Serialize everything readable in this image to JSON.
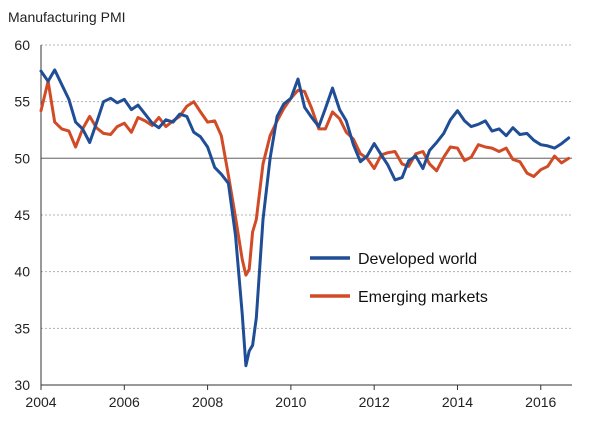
{
  "chart_data": {
    "type": "line",
    "title": "Manufacturing  PMI",
    "xlabel": "",
    "ylabel": "",
    "xlim": [
      2004,
      2016.75
    ],
    "ylim": [
      30,
      60
    ],
    "x_ticks": [
      2004,
      2006,
      2008,
      2010,
      2012,
      2014,
      2016
    ],
    "y_ticks": [
      30,
      35,
      40,
      45,
      50,
      55,
      60
    ],
    "grid": "horizontal-dashed",
    "reference_line": 50,
    "legend_position": "lower-right",
    "series": [
      {
        "name": "Developed world",
        "color": "#1f4e96",
        "x": [
          2004.0,
          2004.17,
          2004.33,
          2004.5,
          2004.67,
          2004.83,
          2005.0,
          2005.17,
          2005.33,
          2005.5,
          2005.67,
          2005.83,
          2006.0,
          2006.17,
          2006.33,
          2006.5,
          2006.67,
          2006.83,
          2007.0,
          2007.17,
          2007.33,
          2007.5,
          2007.67,
          2007.83,
          2008.0,
          2008.17,
          2008.33,
          2008.5,
          2008.67,
          2008.83,
          2008.92,
          2009.0,
          2009.08,
          2009.17,
          2009.33,
          2009.5,
          2009.67,
          2009.83,
          2010.0,
          2010.17,
          2010.33,
          2010.5,
          2010.67,
          2010.83,
          2011.0,
          2011.17,
          2011.33,
          2011.5,
          2011.67,
          2011.83,
          2012.0,
          2012.17,
          2012.33,
          2012.5,
          2012.67,
          2012.83,
          2013.0,
          2013.17,
          2013.33,
          2013.5,
          2013.67,
          2013.83,
          2014.0,
          2014.17,
          2014.33,
          2014.5,
          2014.67,
          2014.83,
          2015.0,
          2015.17,
          2015.33,
          2015.5,
          2015.67,
          2015.83,
          2016.0,
          2016.17,
          2016.33,
          2016.5,
          2016.67
        ],
        "values": [
          57.7,
          56.8,
          57.8,
          56.5,
          55.2,
          53.2,
          52.6,
          51.4,
          53.1,
          55.0,
          55.3,
          54.9,
          55.2,
          54.3,
          54.7,
          53.9,
          53.1,
          52.7,
          53.4,
          53.2,
          53.9,
          53.7,
          52.3,
          51.9,
          51.0,
          49.2,
          48.6,
          47.8,
          43.2,
          36.3,
          31.7,
          33.0,
          33.5,
          35.9,
          44.6,
          50.0,
          53.7,
          54.8,
          55.3,
          57.0,
          54.5,
          53.6,
          52.8,
          54.4,
          56.2,
          54.3,
          53.3,
          51.2,
          49.7,
          50.2,
          51.3,
          50.3,
          49.4,
          48.1,
          48.3,
          49.8,
          50.2,
          49.1,
          50.7,
          51.4,
          52.2,
          53.4,
          54.2,
          53.3,
          52.8,
          53.0,
          53.3,
          52.4,
          52.6,
          52.0,
          52.7,
          52.1,
          52.2,
          51.6,
          51.2,
          51.1,
          50.9,
          51.3,
          51.8
        ]
      },
      {
        "name": "Emerging markets",
        "color": "#d24b27",
        "x": [
          2004.0,
          2004.17,
          2004.33,
          2004.5,
          2004.67,
          2004.83,
          2005.0,
          2005.17,
          2005.33,
          2005.5,
          2005.67,
          2005.83,
          2006.0,
          2006.17,
          2006.33,
          2006.5,
          2006.67,
          2006.83,
          2007.0,
          2007.17,
          2007.33,
          2007.5,
          2007.67,
          2007.83,
          2008.0,
          2008.17,
          2008.33,
          2008.5,
          2008.67,
          2008.83,
          2008.92,
          2009.0,
          2009.08,
          2009.17,
          2009.33,
          2009.5,
          2009.67,
          2009.83,
          2010.0,
          2010.17,
          2010.33,
          2010.5,
          2010.67,
          2010.83,
          2011.0,
          2011.17,
          2011.33,
          2011.5,
          2011.67,
          2011.83,
          2012.0,
          2012.17,
          2012.33,
          2012.5,
          2012.67,
          2012.83,
          2013.0,
          2013.17,
          2013.33,
          2013.5,
          2013.67,
          2013.83,
          2014.0,
          2014.17,
          2014.33,
          2014.5,
          2014.67,
          2014.83,
          2015.0,
          2015.17,
          2015.33,
          2015.5,
          2015.67,
          2015.83,
          2016.0,
          2016.17,
          2016.33,
          2016.5,
          2016.67
        ],
        "values": [
          54.2,
          56.8,
          53.2,
          52.6,
          52.4,
          51.0,
          52.6,
          53.7,
          52.7,
          52.2,
          52.1,
          52.8,
          53.1,
          52.3,
          53.6,
          53.3,
          52.9,
          53.6,
          52.8,
          53.3,
          53.7,
          54.6,
          55.0,
          54.1,
          53.2,
          53.3,
          52.0,
          48.5,
          44.8,
          41.1,
          39.7,
          40.2,
          43.5,
          44.6,
          49.5,
          52.0,
          53.3,
          54.4,
          55.3,
          56.0,
          55.9,
          54.4,
          52.6,
          52.6,
          54.1,
          53.5,
          52.3,
          51.7,
          50.4,
          50.0,
          49.1,
          50.3,
          50.5,
          50.6,
          49.5,
          49.3,
          50.4,
          50.6,
          49.5,
          48.9,
          50.1,
          51.0,
          50.9,
          49.8,
          50.1,
          51.2,
          51.0,
          50.9,
          50.6,
          50.9,
          49.9,
          49.7,
          48.7,
          48.4,
          49.0,
          49.3,
          50.2,
          49.6,
          50.0
        ]
      }
    ]
  }
}
